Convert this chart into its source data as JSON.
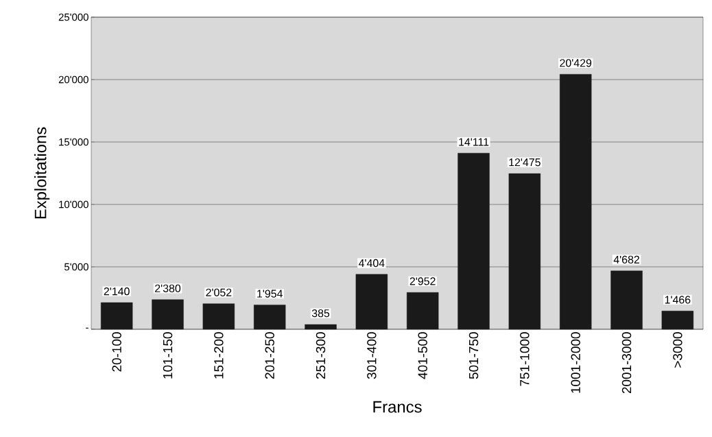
{
  "chart_data": {
    "type": "bar",
    "xlabel": "Francs",
    "ylabel": "Exploitations",
    "categories": [
      "20-100",
      "101-150",
      "151-200",
      "201-250",
      "251-300",
      "301-400",
      "401-500",
      "501-750",
      "751-1000",
      "1001-2000",
      "2001-3000",
      ">3000"
    ],
    "values": [
      2140,
      2380,
      2052,
      1954,
      385,
      4404,
      2952,
      14111,
      12475,
      20429,
      4682,
      1466
    ],
    "value_labels": [
      "2'140",
      "2'380",
      "2'052",
      "1'954",
      "385",
      "4'404",
      "2'952",
      "14'111",
      "12'475",
      "20'429",
      "4'682",
      "1'466"
    ],
    "color": "#1a1a1a",
    "ylim": [
      0,
      25000
    ],
    "yticks": [
      {
        "value": 0,
        "label": "-"
      },
      {
        "value": 5000,
        "label": "5'000"
      },
      {
        "value": 10000,
        "label": "10'000"
      },
      {
        "value": 15000,
        "label": "15'000"
      },
      {
        "value": 20000,
        "label": "20'000"
      },
      {
        "value": 25000,
        "label": "25'000"
      }
    ],
    "grid": "y"
  }
}
